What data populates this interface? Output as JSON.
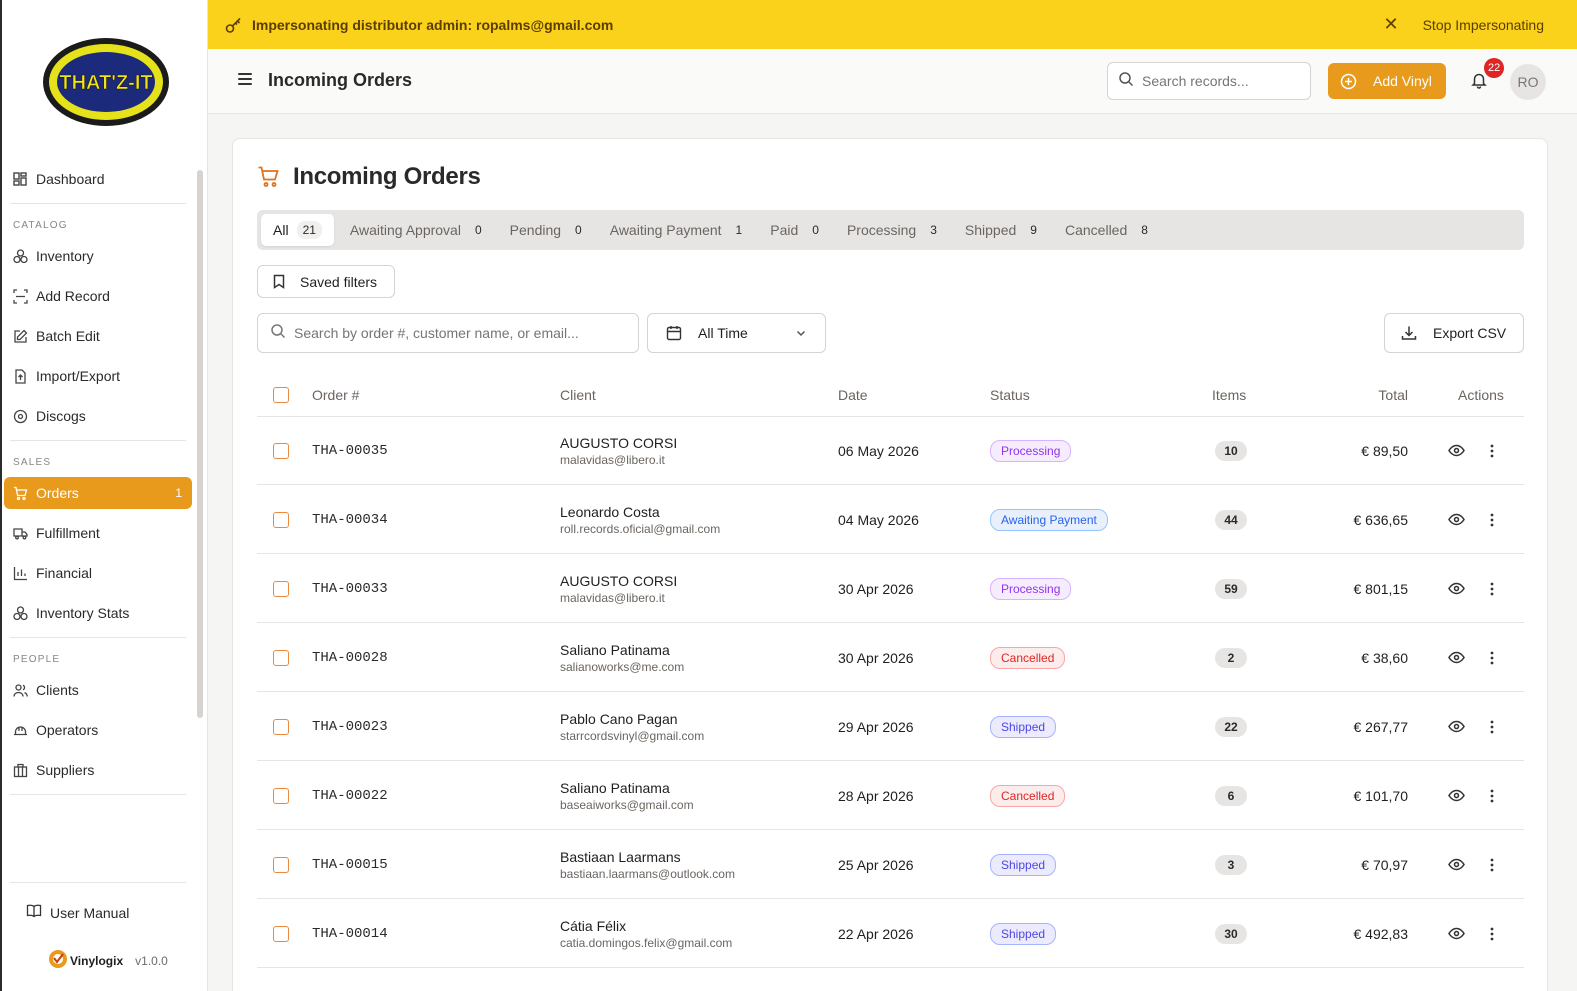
{
  "banner": {
    "text": "Impersonating distributor admin: ropalms@gmail.com",
    "stop_label": "Stop Impersonating"
  },
  "sidebar": {
    "logo_text": "THAT'Z-IT",
    "items_top": [
      {
        "label": "Dashboard",
        "icon": "dashboard-icon"
      }
    ],
    "sections": [
      {
        "title": "CATALOG",
        "items": [
          {
            "label": "Inventory",
            "icon": "inventory-icon"
          },
          {
            "label": "Add Record",
            "icon": "scan-icon"
          },
          {
            "label": "Batch Edit",
            "icon": "edit-icon"
          },
          {
            "label": "Import/Export",
            "icon": "upload-file-icon"
          },
          {
            "label": "Discogs",
            "icon": "disc-icon"
          }
        ]
      },
      {
        "title": "SALES",
        "items": [
          {
            "label": "Orders",
            "icon": "cart-icon",
            "badge": "1",
            "active": true
          },
          {
            "label": "Fulfillment",
            "icon": "truck-icon"
          },
          {
            "label": "Financial",
            "icon": "bar-chart-icon"
          },
          {
            "label": "Inventory Stats",
            "icon": "stats-icon"
          }
        ]
      },
      {
        "title": "PEOPLE",
        "items": [
          {
            "label": "Clients",
            "icon": "users-icon"
          },
          {
            "label": "Operators",
            "icon": "hard-hat-icon"
          },
          {
            "label": "Suppliers",
            "icon": "store-icon"
          }
        ]
      }
    ],
    "user_manual": "User Manual",
    "brand_name": "Vinylogix",
    "version": "v1.0.0"
  },
  "topbar": {
    "title": "Incoming Orders",
    "search_placeholder": "Search records...",
    "add_vinyl_label": "Add Vinyl",
    "notification_count": "22",
    "avatar_initials": "RO"
  },
  "main": {
    "title": "Incoming Orders",
    "tabs": [
      {
        "label": "All",
        "count": "21",
        "active": true
      },
      {
        "label": "Awaiting Approval",
        "count": "0"
      },
      {
        "label": "Pending",
        "count": "0"
      },
      {
        "label": "Awaiting Payment",
        "count": "1"
      },
      {
        "label": "Paid",
        "count": "0"
      },
      {
        "label": "Processing",
        "count": "3"
      },
      {
        "label": "Shipped",
        "count": "9"
      },
      {
        "label": "Cancelled",
        "count": "8"
      }
    ],
    "saved_filters_label": "Saved filters",
    "search_placeholder": "Search by order #, customer name, or email...",
    "date_filter_value": "All Time",
    "export_label": "Export CSV",
    "columns": [
      "Order #",
      "Client",
      "Date",
      "Status",
      "Items",
      "Total",
      "Actions"
    ],
    "orders": [
      {
        "order": "THA-00035",
        "client": "AUGUSTO CORSI",
        "email": "malavidas@libero.it",
        "date": "06 May 2026",
        "status": "Processing",
        "items": "10",
        "total": "€ 89,50"
      },
      {
        "order": "THA-00034",
        "client": "Leonardo Costa",
        "email": "roll.records.oficial@gmail.com",
        "date": "04 May 2026",
        "status": "Awaiting Payment",
        "items": "44",
        "total": "€ 636,65"
      },
      {
        "order": "THA-00033",
        "client": "AUGUSTO CORSI",
        "email": "malavidas@libero.it",
        "date": "30 Apr 2026",
        "status": "Processing",
        "items": "59",
        "total": "€ 801,15"
      },
      {
        "order": "THA-00028",
        "client": "Saliano Patinama",
        "email": "salianoworks@me.com",
        "date": "30 Apr 2026",
        "status": "Cancelled",
        "items": "2",
        "total": "€ 38,60"
      },
      {
        "order": "THA-00023",
        "client": "Pablo Cano Pagan",
        "email": "starrcordsvinyl@gmail.com",
        "date": "29 Apr 2026",
        "status": "Shipped",
        "items": "22",
        "total": "€ 267,77"
      },
      {
        "order": "THA-00022",
        "client": "Saliano Patinama",
        "email": "baseaiworks@gmail.com",
        "date": "28 Apr 2026",
        "status": "Cancelled",
        "items": "6",
        "total": "€ 101,70"
      },
      {
        "order": "THA-00015",
        "client": "Bastiaan Laarmans",
        "email": "bastiaan.laarmans@outlook.com",
        "date": "25 Apr 2026",
        "status": "Shipped",
        "items": "3",
        "total": "€ 70,97"
      },
      {
        "order": "THA-00014",
        "client": "Cátia Félix",
        "email": "catia.domingos.felix@gmail.com",
        "date": "22 Apr 2026",
        "status": "Shipped",
        "items": "30",
        "total": "€ 492,83"
      }
    ]
  },
  "colors": {
    "accent": "#e89a1c",
    "banner": "#fad21c"
  }
}
